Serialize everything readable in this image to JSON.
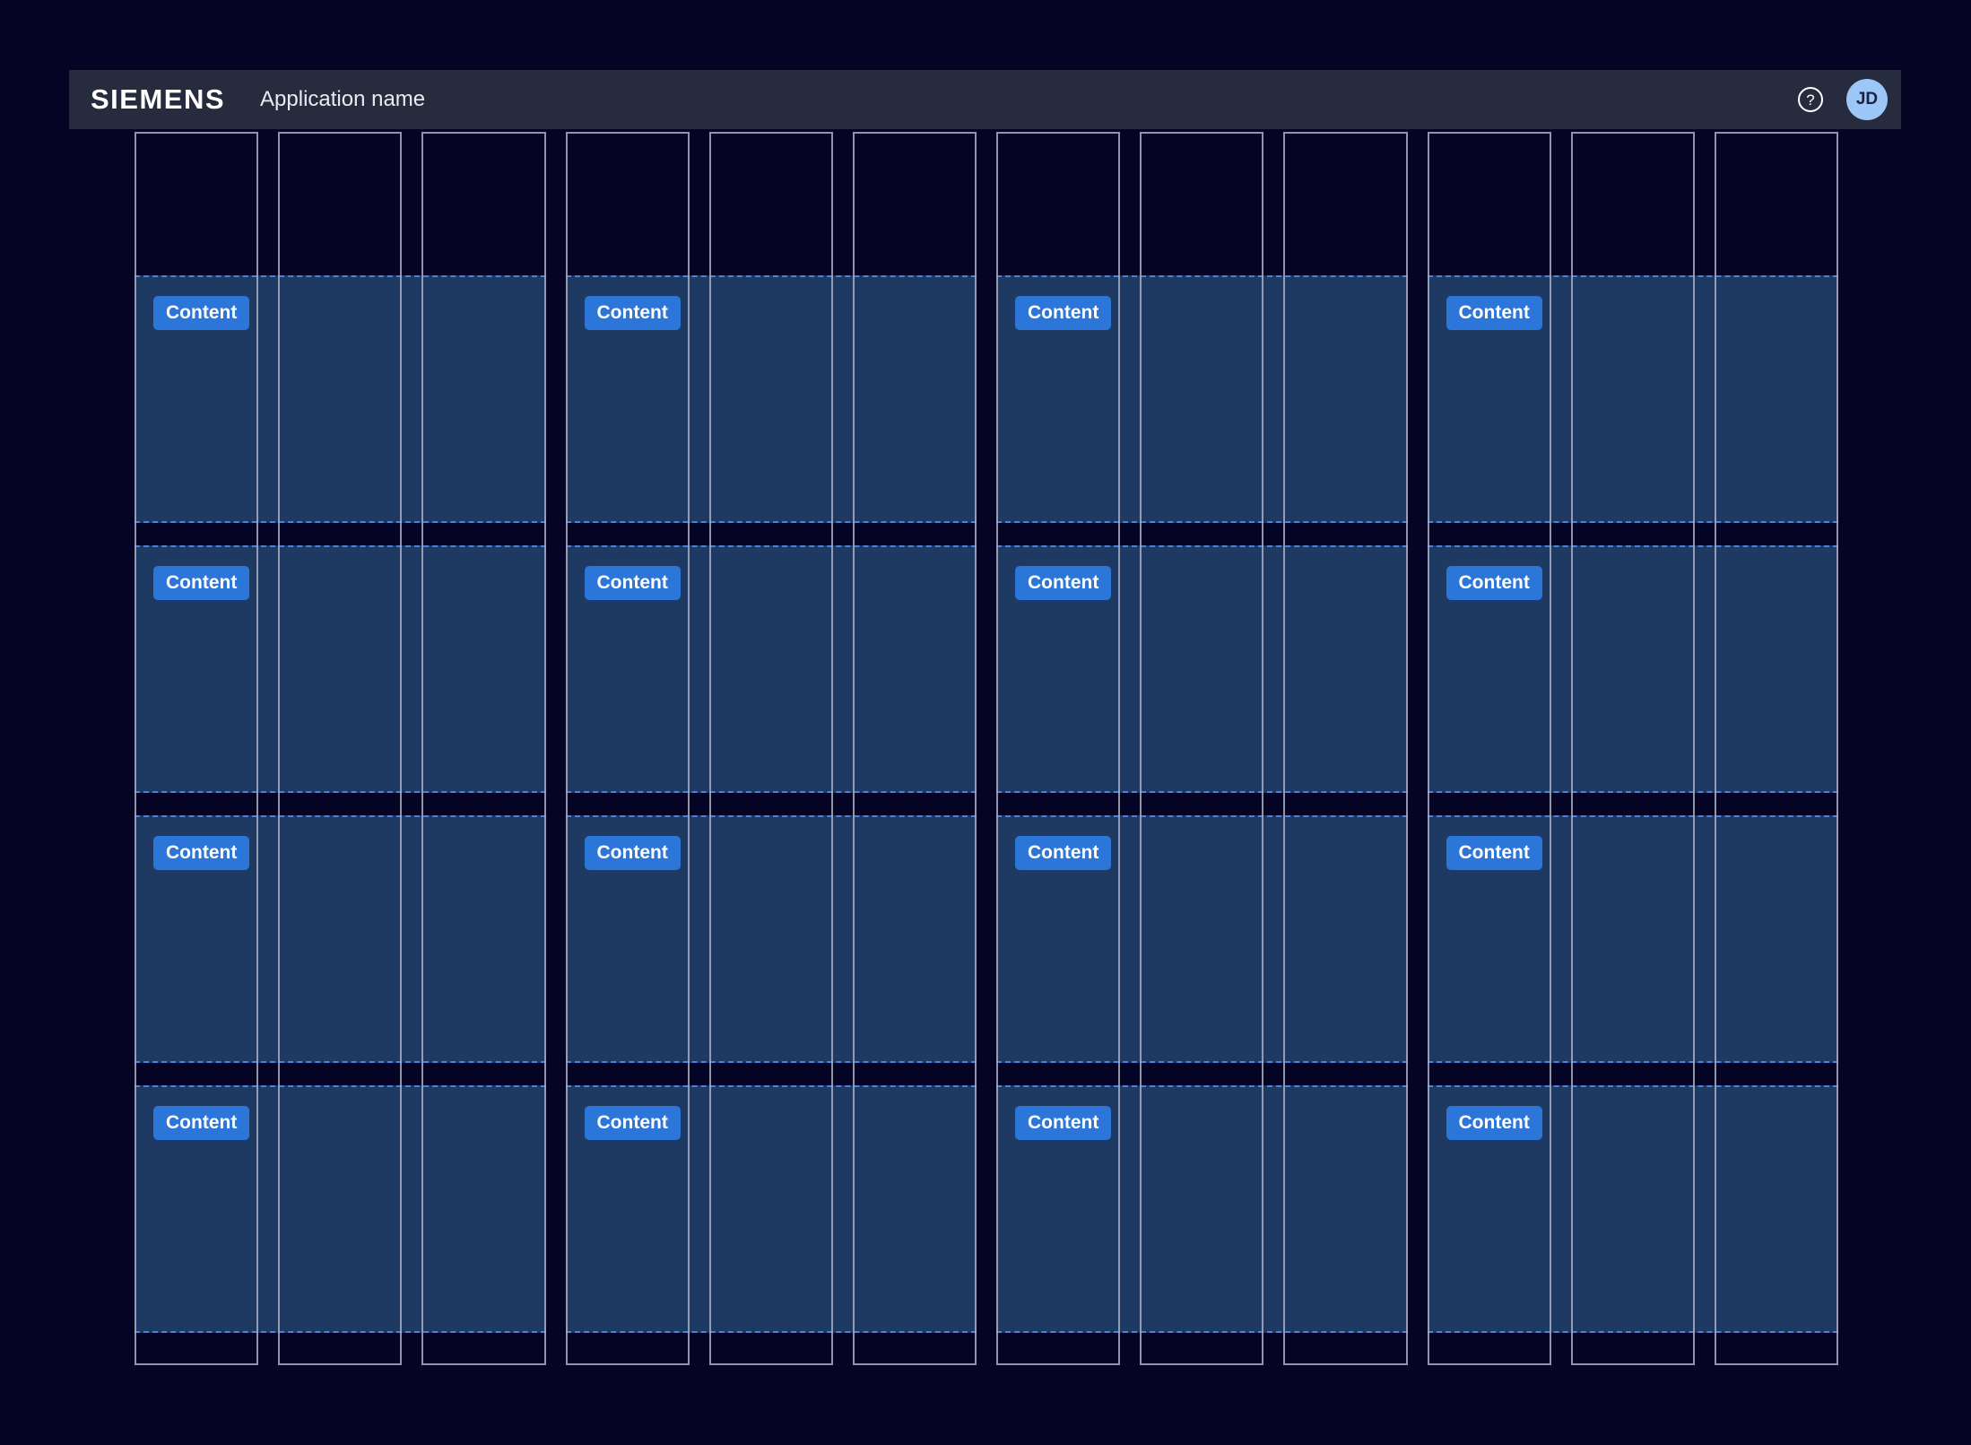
{
  "header": {
    "brand": "SIEMENS",
    "app_name": "Application name",
    "help_glyph": "?",
    "avatar_initials": "JD"
  },
  "grid": {
    "content_label": "Content",
    "columns": 12,
    "content_rows": 4,
    "blocks_per_row": 4,
    "block_span_columns": 3
  },
  "colors": {
    "page_bg": "#050424",
    "header_bg": "#262b3d",
    "column_line": "#aaafc4",
    "block_fill": "#1e3a63",
    "block_dashed_border": "#4a82dd",
    "button_bg": "#2d76d9",
    "button_text": "#ffffff",
    "avatar_bg": "#9cc7f7",
    "avatar_text": "#1c2340"
  }
}
